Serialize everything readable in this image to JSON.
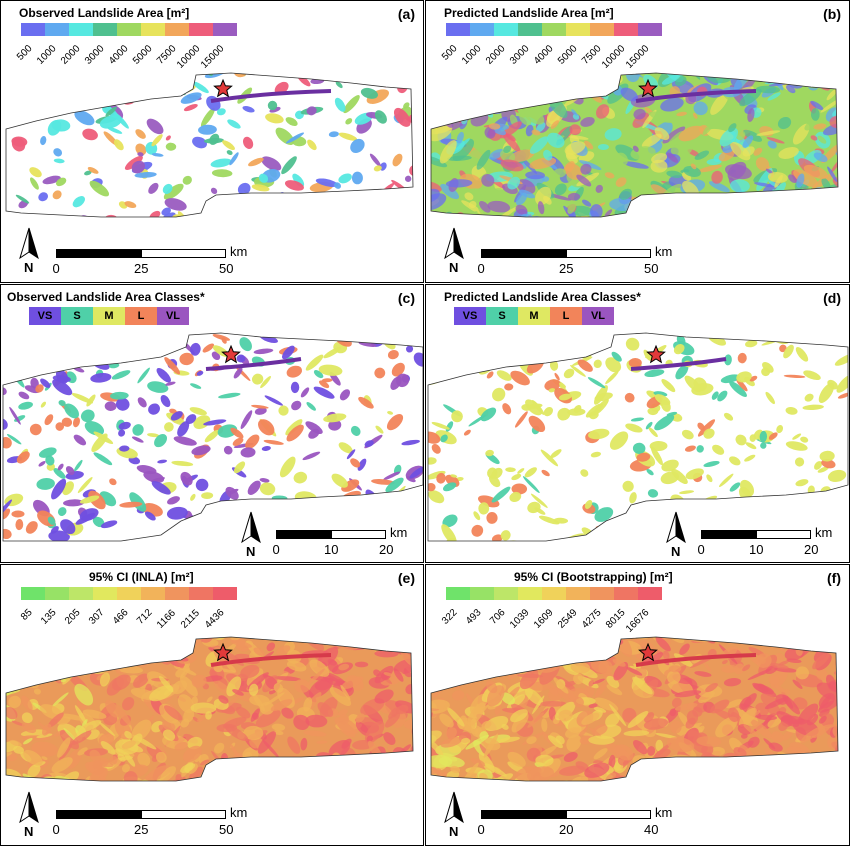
{
  "colors": {
    "area_scale": [
      "#6a6ef0",
      "#5fa9f0",
      "#56e8e0",
      "#4fc08f",
      "#9fd860",
      "#e7e35c",
      "#f2a65a",
      "#ee5d7a",
      "#9a5cc0"
    ],
    "class_scale": [
      "#6f4fe0",
      "#4fd0a8",
      "#dfe862",
      "#f2845a",
      "#9a55c0"
    ],
    "ci_scale": [
      "#6fe36a",
      "#97e266",
      "#bde668",
      "#e1e85e",
      "#f0d25a",
      "#f2b35a",
      "#f0945e",
      "#ef7563",
      "#ee5c6a"
    ],
    "star": "#e23a3a"
  },
  "panels": {
    "a": {
      "title": "Observed Landslide Area [m²]",
      "letter": "(a)",
      "ticks": [
        "500",
        "1000",
        "2000",
        "3000",
        "4000",
        "5000",
        "7500",
        "10000",
        "15000"
      ],
      "scale": {
        "labels": [
          "0",
          "25",
          "50"
        ],
        "unit": "km"
      }
    },
    "b": {
      "title": "Predicted Landslide Area [m²]",
      "letter": "(b)",
      "ticks": [
        "500",
        "1000",
        "2000",
        "3000",
        "4000",
        "5000",
        "7500",
        "10000",
        "15000"
      ],
      "scale": {
        "labels": [
          "0",
          "25",
          "50"
        ],
        "unit": "km"
      }
    },
    "c": {
      "title": "Observed Landslide Area Classes*",
      "letter": "(c)",
      "classes": [
        "VS",
        "S",
        "M",
        "L",
        "VL"
      ],
      "scale": {
        "labels": [
          "0",
          "10",
          "20"
        ],
        "unit": "km"
      }
    },
    "d": {
      "title": "Predicted Landslide Area Classes*",
      "letter": "(d)",
      "classes": [
        "VS",
        "S",
        "M",
        "L",
        "VL"
      ],
      "scale": {
        "labels": [
          "0",
          "10",
          "20"
        ],
        "unit": "km"
      }
    },
    "e": {
      "title": "95% CI (INLA) [m²]",
      "letter": "(e)",
      "ticks": [
        "85",
        "135",
        "205",
        "307",
        "466",
        "712",
        "1166",
        "2115",
        "4436"
      ],
      "scale": {
        "labels": [
          "0",
          "25",
          "50"
        ],
        "unit": "km"
      }
    },
    "f": {
      "title": "95% CI (Bootstrapping) [m²]",
      "letter": "(f)",
      "ticks": [
        "322",
        "493",
        "706",
        "1039",
        "1609",
        "2549",
        "4275",
        "8015",
        "16676"
      ],
      "scale": {
        "labels": [
          "0",
          "20",
          "40"
        ],
        "unit": "km"
      }
    }
  },
  "north_label": "N"
}
